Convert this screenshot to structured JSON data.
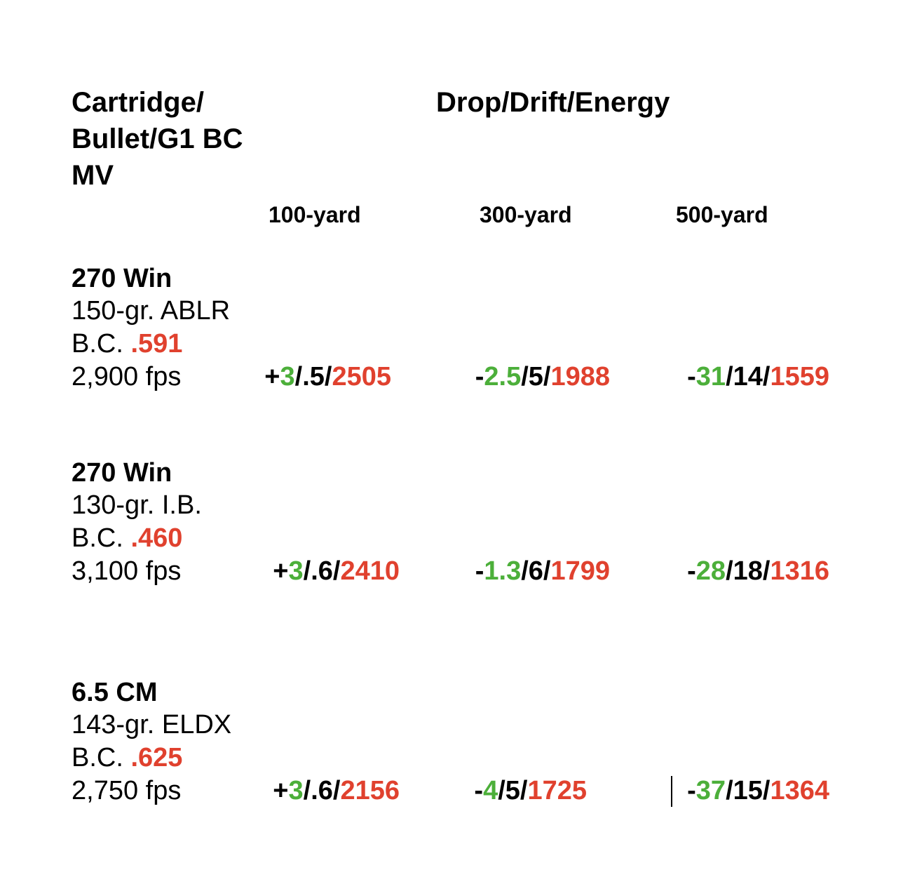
{
  "header": {
    "left_lines": [
      "Cartridge/",
      "Bullet/G1 BC",
      "MV"
    ],
    "right_title": "Drop/Drift/Energy"
  },
  "columns": [
    "100-yard",
    "300-yard",
    "500-yard"
  ],
  "colors": {
    "drop": "#4caf3a",
    "energy": "#e0412e",
    "text": "#000000"
  },
  "rows": [
    {
      "cartridge": "270 Win",
      "bullet": "150-gr. ABLR",
      "bc_label": "B.C. ",
      "bc_value": ".591",
      "mv": "2,900 fps",
      "cells": [
        {
          "sign": "+",
          "drop": "3",
          "drift": "/.5/",
          "energy": "2505"
        },
        {
          "sign": "-",
          "drop": "2.5",
          "drift": "/5/",
          "energy": "1988"
        },
        {
          "sign": "-",
          "drop": "31",
          "drift": "/14/",
          "energy": "1559"
        }
      ]
    },
    {
      "cartridge": "270 Win",
      "bullet": "130-gr. I.B.",
      "bc_label": "B.C. ",
      "bc_value": ".460",
      "mv": "3,100 fps",
      "cells": [
        {
          "sign": "+",
          "drop": "3",
          "drift": "/.6/",
          "energy": "2410"
        },
        {
          "sign": "-",
          "drop": "1.3",
          "drift": "/6/",
          "energy": "1799"
        },
        {
          "sign": "-",
          "drop": "28",
          "drift": "/18/",
          "energy": "1316"
        }
      ]
    },
    {
      "cartridge": "6.5 CM",
      "bullet": "143-gr. ELDX",
      "bc_label": "B.C. ",
      "bc_value": ".625",
      "mv": "2,750 fps",
      "cells": [
        {
          "sign": "+",
          "drop": "3",
          "drift": "/.6/",
          "energy": "2156"
        },
        {
          "sign": "-",
          "drop": "4",
          "drift": "/5/",
          "energy": "1725"
        },
        {
          "sign": "-",
          "drop": "37",
          "drift": "/15/",
          "energy": "1364"
        }
      ]
    }
  ]
}
